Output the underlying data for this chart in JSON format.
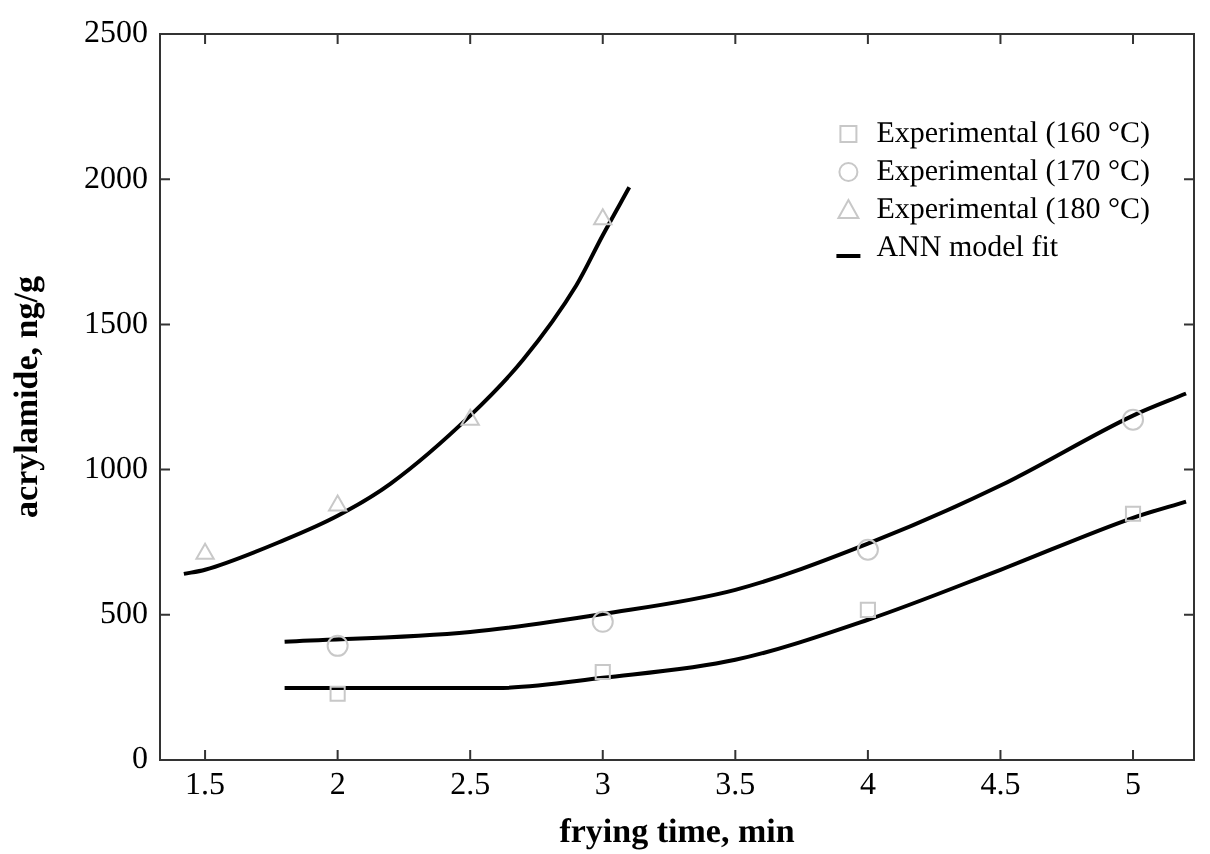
{
  "chart_data": {
    "type": "scatter",
    "xlabel": "frying time, min",
    "ylabel": "acrylamide, ng/g",
    "xlim": [
      1.33,
      5.23
    ],
    "xticks": [
      {
        "value": 1.5,
        "label": "1.5"
      },
      2,
      {
        "value": 2.5,
        "label": "2.5"
      },
      3,
      {
        "value": 3.5,
        "label": "3.5"
      },
      4,
      {
        "value": 4.5,
        "label": "4.5"
      },
      5
    ],
    "ylim": [
      0,
      2500
    ],
    "yticks": [
      0,
      500,
      1000,
      1500,
      2000,
      2500
    ],
    "grid": false,
    "legend": "top right",
    "series": [
      {
        "name": "Experimental (160 °C)",
        "marker": "square",
        "color": "#c8c8c8",
        "x": [
          2,
          3,
          4,
          5
        ],
        "values": [
          228,
          303,
          517,
          848
        ]
      },
      {
        "name": "Experimental (170 °C)",
        "marker": "circle",
        "color": "#c8c8c8",
        "x": [
          2,
          3,
          4,
          5
        ],
        "values": [
          393,
          476,
          724,
          1172
        ]
      },
      {
        "name": "Experimental (180 °C)",
        "marker": "triangle",
        "color": "#c8c8c8",
        "x": [
          1.5,
          2,
          2.5,
          3
        ],
        "values": [
          710,
          876,
          1172,
          1862
        ]
      },
      {
        "name": "ANN model fit",
        "type": "line",
        "marker": "none",
        "color": "#000000",
        "x": [
          1.8,
          2.6,
          3,
          3.5,
          4,
          4.5,
          5,
          5.2
        ],
        "values": [
          248,
          248,
          283,
          345,
          483,
          655,
          834,
          890
        ]
      },
      {
        "type": "line",
        "marker": "none",
        "color": "#000000",
        "x": [
          1.8,
          2.5,
          3,
          3.5,
          4,
          4.5,
          5,
          5.2
        ],
        "values": [
          407,
          441,
          503,
          586,
          745,
          945,
          1186,
          1262
        ]
      },
      {
        "type": "line",
        "marker": "none",
        "color": "#000000",
        "x": [
          1.42,
          1.5,
          1.8,
          2,
          2.2,
          2.5,
          2.7,
          2.9,
          3,
          3.1
        ],
        "values": [
          641,
          655,
          758,
          841,
          952,
          1186,
          1379,
          1634,
          1807,
          1972
        ]
      }
    ]
  }
}
